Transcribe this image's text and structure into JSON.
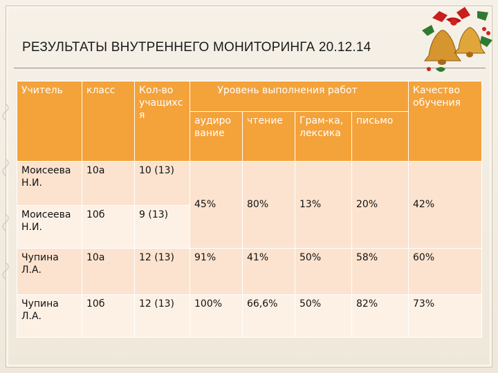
{
  "title": "РЕЗУЛЬТАТЫ ВНУТРЕННЕГО МОНИТОРИНГА 20.12.14",
  "header": {
    "teacher": "Учитель",
    "class": "класс",
    "count": "Кол-во учащихс я",
    "level": "Уровень выполнения работ",
    "quality": "Качество обучения",
    "sub": [
      "аудиро вание",
      "чтение",
      "Грам-ка, лексика",
      "письмо"
    ]
  },
  "rows": [
    {
      "teacher": "Моисеева Н.И.",
      "class": "10а",
      "count": "10 (13)"
    },
    {
      "teacher": "Моисеева Н.И.",
      "class": "10б",
      "count": "9 (13)"
    },
    {
      "teacher": "Чупина Л.А.",
      "class": "10а",
      "count": "12 (13)",
      "values": [
        "91%",
        "41%",
        "50%",
        "58%",
        "60%"
      ]
    },
    {
      "teacher": "Чупина Л.А.",
      "class": "10б",
      "count": "12 (13)",
      "values": [
        "100%",
        "66,6%",
        "50%",
        "82%",
        "73%"
      ]
    }
  ],
  "merged_values": [
    "45%",
    "80%",
    "13%",
    "20%",
    "42%"
  ],
  "colors": {
    "header": "#f4a23a",
    "row_dark": "#fbe3cf",
    "row_light": "#fdf1e6"
  },
  "decoration": "christmas-bells-icon"
}
